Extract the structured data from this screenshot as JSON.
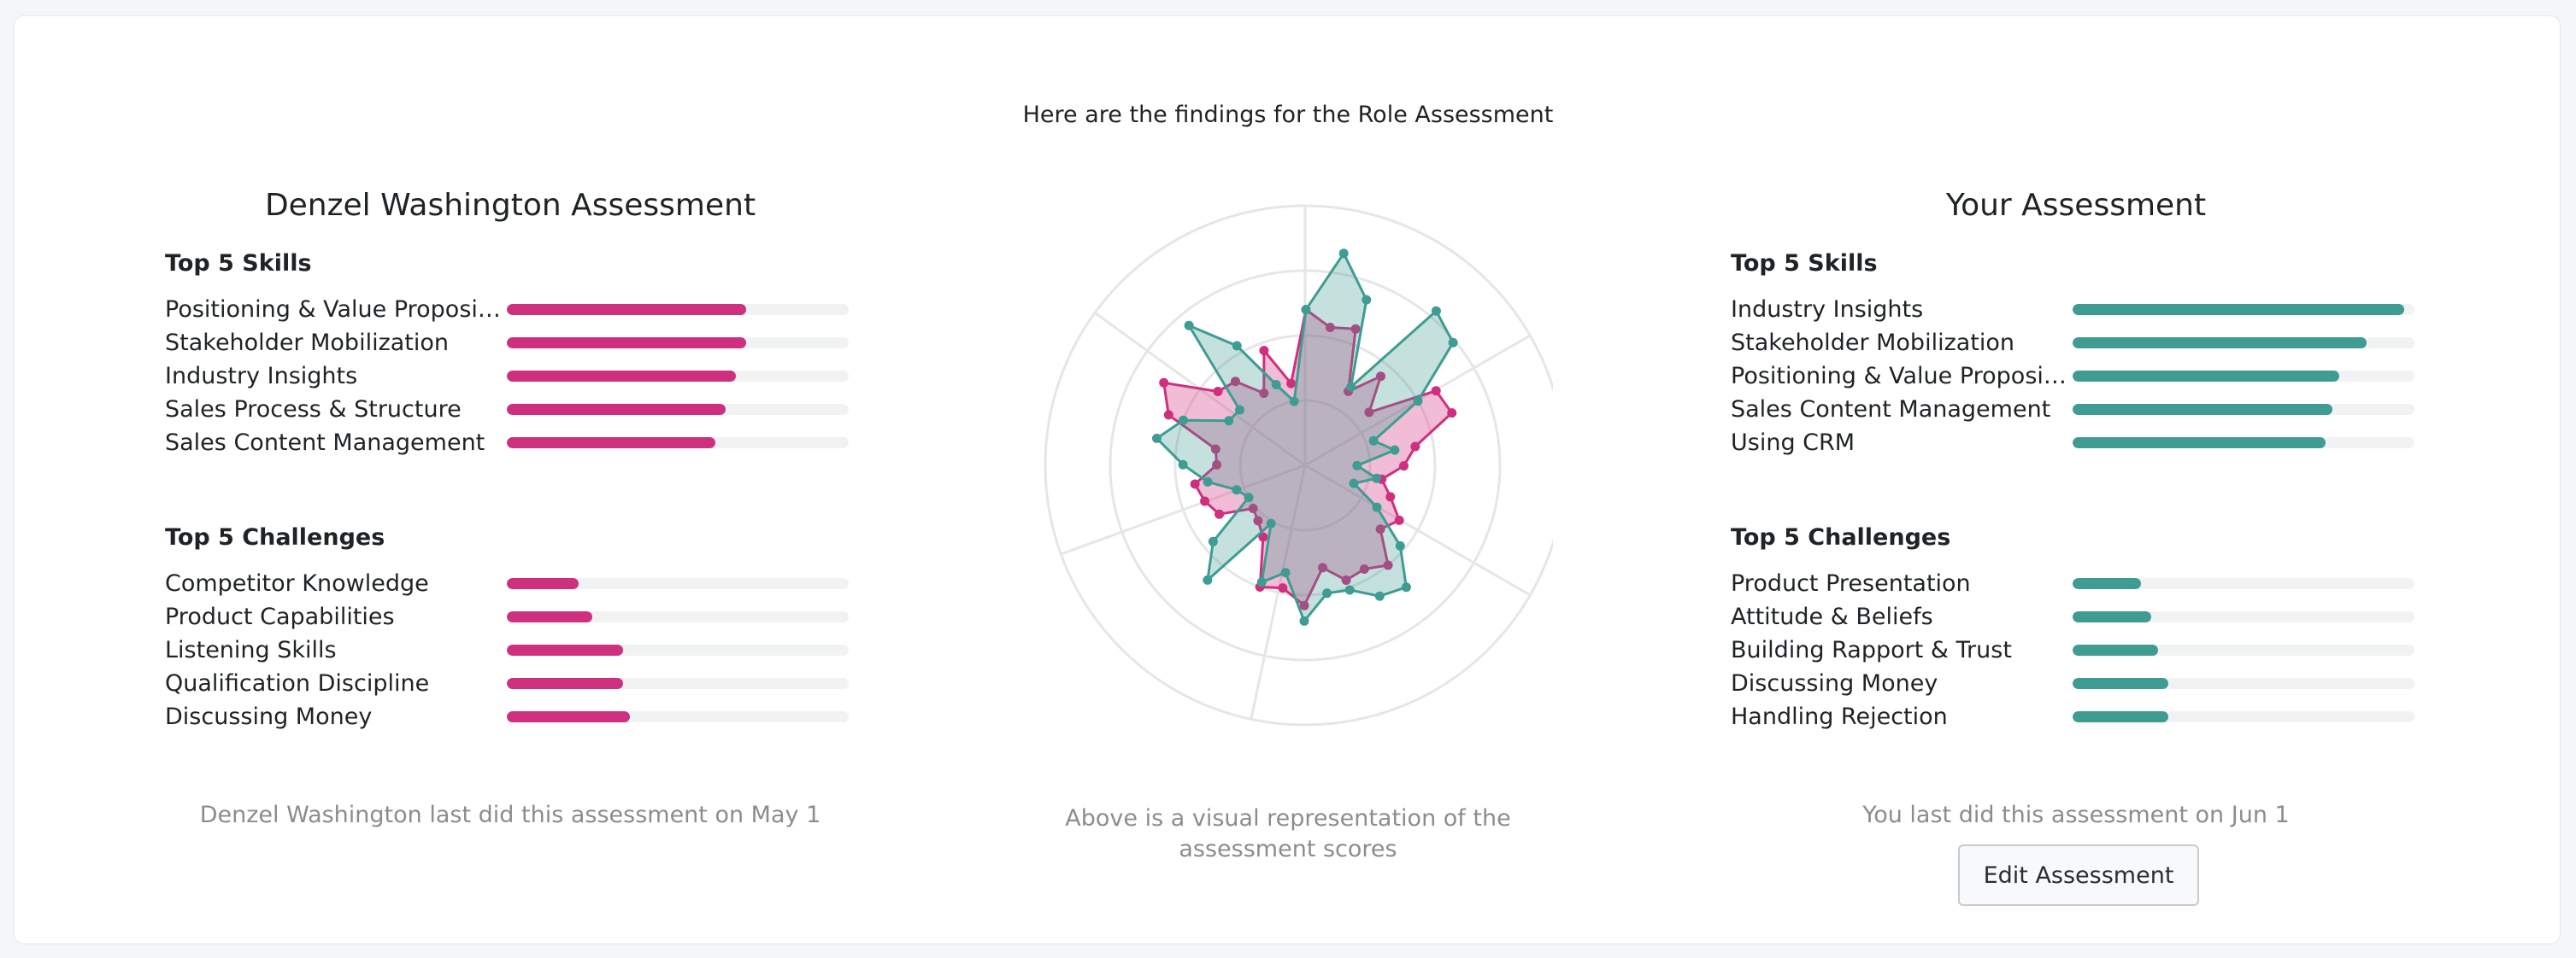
{
  "intro": "Here are the findings for the Role Assessment",
  "left": {
    "title": "Denzel Washington Assessment",
    "skills_title": "Top 5 Skills",
    "skills": [
      {
        "label": "Positioning & Value Proposit...",
        "value": 0.7
      },
      {
        "label": "Stakeholder Mobilization",
        "value": 0.7
      },
      {
        "label": "Industry Insights",
        "value": 0.67
      },
      {
        "label": "Sales Process & Structure",
        "value": 0.64
      },
      {
        "label": "Sales Content Management",
        "value": 0.61
      }
    ],
    "challenges_title": "Top 5 Challenges",
    "challenges": [
      {
        "label": "Competitor Knowledge",
        "value": 0.21
      },
      {
        "label": "Product Capabilities",
        "value": 0.25
      },
      {
        "label": "Listening Skills",
        "value": 0.34
      },
      {
        "label": "Qualification Discipline",
        "value": 0.34
      },
      {
        "label": "Discussing Money",
        "value": 0.36
      }
    ],
    "footer": "Denzel Washington last did this assessment on May 1"
  },
  "right": {
    "title": "Your Assessment",
    "skills_title": "Top 5 Skills",
    "skills": [
      {
        "label": "Industry Insights",
        "value": 0.97
      },
      {
        "label": "Stakeholder Mobilization",
        "value": 0.86
      },
      {
        "label": "Positioning & Value Proposit...",
        "value": 0.78
      },
      {
        "label": "Sales Content Management",
        "value": 0.76
      },
      {
        "label": "Using CRM",
        "value": 0.74
      }
    ],
    "challenges_title": "Top 5 Challenges",
    "challenges": [
      {
        "label": "Product Presentation",
        "value": 0.2
      },
      {
        "label": "Attitude & Beliefs",
        "value": 0.23
      },
      {
        "label": "Building Rapport & Trust",
        "value": 0.25
      },
      {
        "label": "Discussing Money",
        "value": 0.28
      },
      {
        "label": "Handling Rejection",
        "value": 0.28
      }
    ],
    "footer": "You last did this assessment on Jun 1",
    "edit_button": "Edit Assessment"
  },
  "chart_caption": "Above is a visual representation of the assessment scores",
  "colors": {
    "pink": "#cf2f7f",
    "teal": "#3e9c93",
    "pink_fill": "rgba(207,47,127,0.32)",
    "teal_fill": "rgba(62,156,147,0.30)"
  },
  "chart_data": {
    "type": "radar",
    "axis_count": 36,
    "rmax": 1,
    "rings": 4,
    "series": [
      {
        "color": "pink",
        "values": [
          0.54,
          0.56,
          0.33,
          0.45,
          0.32,
          0.58,
          0.6,
          0.43,
          0.38,
          0.3,
          0.35,
          0.42,
          0.38,
          0.5,
          0.46,
          0.47,
          0.4,
          0.54,
          0.48,
          0.5,
          0.32,
          0.28,
          0.26,
          0.38,
          0.41,
          0.43,
          0.34,
          0.35,
          0.56,
          0.63,
          0.44,
          0.42,
          0.32,
          0.47,
          0.32,
          0.6
        ]
      },
      {
        "color": "teal",
        "values": [
          0.83,
          0.68,
          0.35,
          0.78,
          0.74,
          0.5,
          0.28,
          0.35,
          0.2,
          0.28,
          0.2,
          0.32,
          0.48,
          0.61,
          0.58,
          0.51,
          0.5,
          0.6,
          0.42,
          0.48,
          0.26,
          0.58,
          0.46,
          0.25,
          0.28,
          0.38,
          0.47,
          0.58,
          0.5,
          0.34,
          0.33,
          0.7,
          0.53,
          0.33,
          0.25,
          0.6
        ]
      }
    ]
  }
}
